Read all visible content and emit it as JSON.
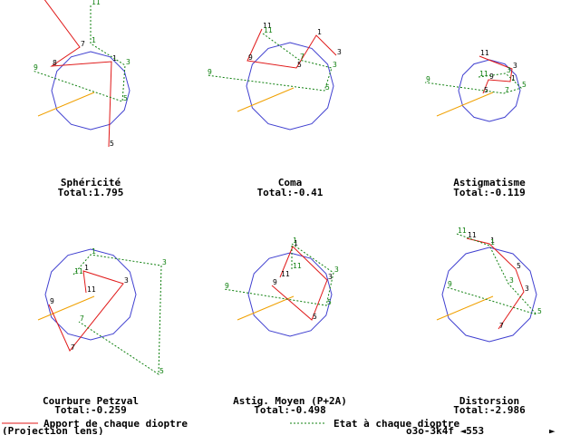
{
  "colors": {
    "circle": "#4040d0",
    "contribution": "#e01818",
    "state": "#108010",
    "ray": "#f0a000",
    "text": "#000000",
    "label_red": "#000000",
    "label_green": "#108010"
  },
  "chart_data": [
    {
      "type": "line",
      "title": "Sphéricité",
      "total_text": "Total:1.795",
      "series": [
        {
          "name": "Apport de chaque dioptre",
          "labels": [
            "11",
            "7",
            "8",
            "1",
            "5"
          ],
          "points": [
            [
              -52,
              -102
            ],
            [
              -12,
              -48
            ],
            [
              -43,
              -27
            ],
            [
              23,
              -32
            ],
            [
              20,
              62
            ]
          ]
        },
        {
          "name": "Etat à chaque dioptre",
          "labels": [
            "11",
            "1",
            "3",
            "5",
            "9"
          ],
          "points": [
            [
              0,
              -94
            ],
            [
              0,
              -52
            ],
            [
              38,
              -28
            ],
            [
              35,
              12
            ],
            [
              -64,
              -22
            ]
          ]
        }
      ]
    },
    {
      "type": "line",
      "title": "Coma",
      "total_text": "Total:-0.41",
      "series": [
        {
          "name": "Apport de chaque dioptre",
          "labels": [
            "11",
            "9",
            "5",
            "1",
            "3"
          ],
          "points": [
            [
              -31,
              -63
            ],
            [
              -47,
              -28
            ],
            [
              7,
              -20
            ],
            [
              29,
              -56
            ],
            [
              51,
              -34
            ]
          ]
        },
        {
          "name": "Etat à chaque dioptre",
          "labels": [
            "11",
            "7",
            "3",
            "5",
            "9"
          ],
          "points": [
            [
              -30,
              -58
            ],
            [
              10,
              -29
            ],
            [
              46,
              -20
            ],
            [
              38,
              5
            ],
            [
              -92,
              -12
            ]
          ]
        }
      ]
    },
    {
      "type": "line",
      "title": "Astigmatisme",
      "total_text": "Total:-0.119",
      "series": [
        {
          "name": "Apport de chaque dioptre",
          "labels": [
            "11",
            "3",
            "1",
            "9",
            "5"
          ],
          "points": [
            [
              -11,
              -38
            ],
            [
              25,
              -24
            ],
            [
              23,
              -10
            ],
            [
              -1,
              -12
            ],
            [
              -7,
              3
            ]
          ]
        },
        {
          "name": "Etat à chaque dioptre",
          "labels": [
            "11",
            "3",
            "5",
            "7",
            "9"
          ],
          "points": [
            [
              -12,
              -15
            ],
            [
              18,
              -19
            ],
            [
              35,
              -3
            ],
            [
              16,
              3
            ],
            [
              -71,
              -9
            ]
          ]
        }
      ]
    },
    {
      "type": "line",
      "title": "Courbure Petzval",
      "total_text": "Total:-0.259",
      "series": [
        {
          "name": "Apport de chaque dioptre",
          "labels": [
            "11",
            "1",
            "3",
            "7",
            "9"
          ],
          "points": [
            [
              -5,
              -2
            ],
            [
              -8,
              -26
            ],
            [
              36,
              -12
            ],
            [
              -23,
              62
            ],
            [
              -46,
              11
            ]
          ]
        },
        {
          "name": "Etat à chaque dioptre",
          "labels": [
            "11",
            "1",
            "3",
            "5",
            "7"
          ],
          "points": [
            [
              -19,
              -22
            ],
            [
              0,
              -44
            ],
            [
              78,
              -32
            ],
            [
              75,
              88
            ],
            [
              -13,
              30
            ]
          ]
        }
      ]
    },
    {
      "type": "line",
      "title": "Astig. Moyen (P+2A)",
      "total_text": "Total:-0.498",
      "series": [
        {
          "name": "Apport de chaque dioptre",
          "labels": [
            "11",
            "1",
            "3",
            "5",
            "9"
          ],
          "points": [
            [
              -11,
              -19
            ],
            [
              3,
              -53
            ],
            [
              41,
              -16
            ],
            [
              24,
              28
            ],
            [
              -20,
              -10
            ]
          ]
        },
        {
          "name": "Etat à chaque dioptre",
          "labels": [
            "11",
            "1",
            "3",
            "5",
            "9"
          ],
          "points": [
            [
              2,
              -28
            ],
            [
              2,
              -56
            ],
            [
              48,
              -24
            ],
            [
              40,
              12
            ],
            [
              -73,
              -6
            ]
          ]
        }
      ]
    },
    {
      "type": "line",
      "title": "Distorsion",
      "total_text": "Total:-2.986",
      "series": [
        {
          "name": "Apport de chaque dioptre",
          "labels": [
            "11",
            "1",
            "5",
            "3",
            "7"
          ],
          "points": [
            [
              -25,
              -62
            ],
            [
              0,
              -56
            ],
            [
              29,
              -28
            ],
            [
              38,
              -3
            ],
            [
              10,
              38
            ]
          ]
        },
        {
          "name": "Etat à chaque dioptre",
          "labels": [
            "11",
            "1",
            "3",
            "5",
            "9"
          ],
          "points": [
            [
              -36,
              -67
            ],
            [
              0,
              -54
            ],
            [
              21,
              -12
            ],
            [
              52,
              22
            ],
            [
              -47,
              -8
            ]
          ]
        }
      ]
    }
  ],
  "legend": {
    "contribution_label": "Apport de chaque dioptre",
    "state_label": "Etat à chaque dioptre"
  },
  "footer": {
    "left": "(Projection lens)",
    "right": "o3o-3k4f ◄553",
    "arrow": "►"
  }
}
